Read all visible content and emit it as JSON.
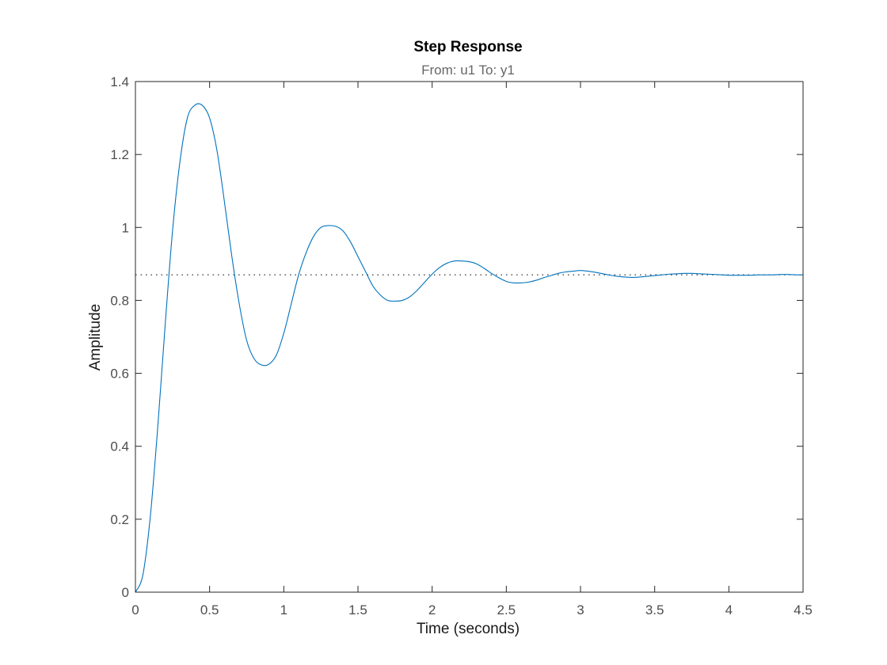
{
  "chart_data": {
    "type": "line",
    "title": "Step Response",
    "subtitle": "From: u1  To: y1",
    "xlabel": "Time (seconds)",
    "ylabel": "Amplitude",
    "xlim": [
      0,
      4.5
    ],
    "ylim": [
      0,
      1.4
    ],
    "xticks": [
      "0",
      "0.5",
      "1",
      "1.5",
      "2",
      "2.5",
      "3",
      "3.5",
      "4",
      "4.5"
    ],
    "yticks": [
      "0",
      "0.2",
      "0.4",
      "0.6",
      "0.8",
      "1",
      "1.2",
      "1.4"
    ],
    "grid": false,
    "box": true,
    "line_color": "#0072bd",
    "steady_state": {
      "value": 0.87,
      "style": "dotted",
      "color": "#000000"
    },
    "series": [
      {
        "x": [
          0,
          0.05,
          0.1,
          0.15,
          0.2,
          0.25,
          0.3,
          0.35,
          0.4,
          0.45,
          0.5,
          0.55,
          0.6,
          0.65,
          0.7,
          0.75,
          0.8,
          0.85,
          0.9,
          0.95,
          1.0,
          1.05,
          1.1,
          1.15,
          1.2,
          1.25,
          1.3,
          1.35,
          1.4,
          1.45,
          1.5,
          1.55,
          1.6,
          1.65,
          1.7,
          1.75,
          1.8,
          1.85,
          1.9,
          1.95,
          2.0,
          2.05,
          2.1,
          2.15,
          2.2,
          2.25,
          2.3,
          2.35,
          2.4,
          2.45,
          2.5,
          2.55,
          2.6,
          2.65,
          2.7,
          2.75,
          2.8,
          2.85,
          2.9,
          2.95,
          3.0,
          3.05,
          3.1,
          3.15,
          3.2,
          3.25,
          3.3,
          3.35,
          3.4,
          3.45,
          3.5,
          3.55,
          3.6,
          3.65,
          3.7,
          3.75,
          3.8,
          3.85,
          3.9,
          3.95,
          4.0,
          4.05,
          4.1,
          4.15,
          4.2,
          4.25,
          4.3,
          4.35,
          4.4,
          4.45,
          4.5
        ],
        "y": [
          0,
          0.047,
          0.206,
          0.45,
          0.73,
          0.99,
          1.18,
          1.3,
          1.335,
          1.335,
          1.3,
          1.21,
          1.07,
          0.92,
          0.79,
          0.69,
          0.64,
          0.623,
          0.625,
          0.65,
          0.71,
          0.79,
          0.87,
          0.93,
          0.975,
          1.0,
          1.005,
          1.003,
          0.99,
          0.96,
          0.92,
          0.88,
          0.84,
          0.815,
          0.8,
          0.798,
          0.8,
          0.81,
          0.828,
          0.85,
          0.872,
          0.89,
          0.902,
          0.908,
          0.908,
          0.906,
          0.9,
          0.888,
          0.874,
          0.862,
          0.852,
          0.848,
          0.848,
          0.85,
          0.855,
          0.862,
          0.868,
          0.874,
          0.878,
          0.88,
          0.882,
          0.88,
          0.877,
          0.873,
          0.869,
          0.866,
          0.864,
          0.863,
          0.864,
          0.866,
          0.868,
          0.87,
          0.872,
          0.873,
          0.874,
          0.874,
          0.873,
          0.872,
          0.871,
          0.87,
          0.869,
          0.869,
          0.869,
          0.869,
          0.87,
          0.87,
          0.87,
          0.871,
          0.871,
          0.87,
          0.87
        ]
      }
    ]
  }
}
